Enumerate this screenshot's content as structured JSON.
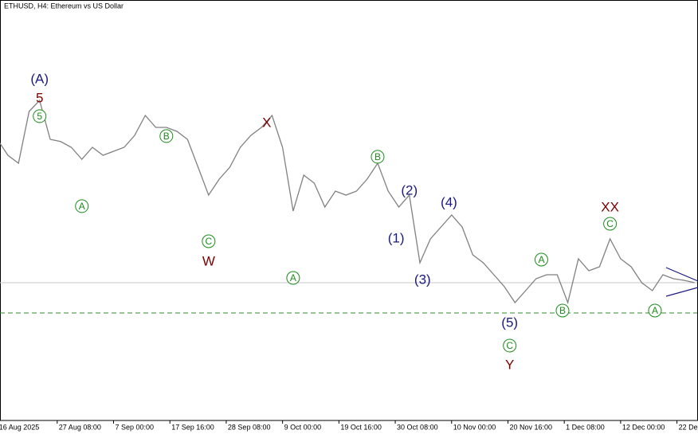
{
  "chart_data": {
    "type": "line",
    "title": "ETHUSD, H4:  Ethereum vs US Dollar",
    "x": [
      "2025-08-16 00:00",
      "2025-08-18 00:00",
      "2025-08-20 00:00",
      "2025-08-22 00:00",
      "2025-08-24 00:00",
      "2025-08-26 00:00",
      "2025-08-28 00:00",
      "2025-08-30 00:00",
      "2025-09-01 00:00",
      "2025-09-03 00:00",
      "2025-09-05 00:00",
      "2025-09-07 00:00",
      "2025-09-09 00:00",
      "2025-09-11 00:00",
      "2025-09-13 00:00",
      "2025-09-15 00:00",
      "2025-09-17 00:00",
      "2025-09-19 00:00",
      "2025-09-21 00:00",
      "2025-09-23 00:00",
      "2025-09-25 00:00",
      "2025-09-27 00:00",
      "2025-09-29 00:00",
      "2025-10-01 00:00",
      "2025-10-03 00:00",
      "2025-10-05 00:00",
      "2025-10-07 00:00",
      "2025-10-09 00:00",
      "2025-10-11 00:00",
      "2025-10-13 00:00",
      "2025-10-15 00:00",
      "2025-10-17 00:00",
      "2025-10-19 00:00",
      "2025-10-21 00:00",
      "2025-10-23 00:00",
      "2025-10-25 00:00",
      "2025-10-27 00:00",
      "2025-10-29 00:00",
      "2025-10-31 00:00",
      "2025-11-02 00:00",
      "2025-11-04 00:00",
      "2025-11-06 00:00",
      "2025-11-08 00:00",
      "2025-11-10 00:00",
      "2025-11-12 00:00",
      "2025-11-14 00:00",
      "2025-11-16 00:00",
      "2025-11-18 00:00",
      "2025-11-20 00:00",
      "2025-11-22 00:00",
      "2025-11-24 00:00",
      "2025-11-26 00:00",
      "2025-11-28 00:00",
      "2025-11-30 00:00",
      "2025-12-02 00:00",
      "2025-12-04 00:00",
      "2025-12-06 00:00",
      "2025-12-08 00:00",
      "2025-12-10 00:00",
      "2025-12-12 00:00",
      "2025-12-14 00:00",
      "2025-12-16 00:00",
      "2025-12-18 00:00",
      "2025-12-20 00:00",
      "2025-12-22 00:00",
      "2025-12-24 00:00",
      "2025-12-26 00:00"
    ],
    "series": [
      {
        "color": "#808080",
        "values": [
          4510,
          4330,
          4240,
          4825,
          4950,
          4510,
          4485,
          4420,
          4285,
          4420,
          4330,
          4375,
          4420,
          4555,
          4780,
          4645,
          4645,
          4600,
          4510,
          4195,
          3880,
          4060,
          4195,
          4420,
          4555,
          4645,
          4780,
          4420,
          3700,
          4105,
          4015,
          3745,
          3925,
          3880,
          3925,
          4060,
          4240,
          3925,
          3745,
          3880,
          3115,
          3385,
          3520,
          3655,
          3520,
          3205,
          3115,
          2980,
          2845,
          2665,
          2800,
          2935,
          2980,
          2980,
          2665,
          3160,
          3025,
          3070,
          3385,
          3160,
          3070,
          2890,
          2800,
          2980,
          2935,
          2917,
          2890
        ]
      }
    ],
    "xlim": [
      "2025-08-16 12:00",
      "2025-12-26 12:00"
    ],
    "ylim": [
      1333,
      6085
    ],
    "xticks": [
      {
        "value": "2025-08-16 00:00",
        "label": "16 Aug 2025"
      },
      {
        "value": "2025-08-27 08:00",
        "label": "27 Aug 08:00"
      },
      {
        "value": "2025-09-07 00:00",
        "label": "7 Sep 00:00"
      },
      {
        "value": "2025-09-17 16:00",
        "label": "17 Sep 16:00"
      },
      {
        "value": "2025-09-28 08:00",
        "label": "28 Sep 08:00"
      },
      {
        "value": "2025-10-09 00:00",
        "label": "9 Oct 00:00"
      },
      {
        "value": "2025-10-19 16:00",
        "label": "19 Oct 16:00"
      },
      {
        "value": "2025-10-30 08:00",
        "label": "30 Oct 08:00"
      },
      {
        "value": "2025-11-10 00:00",
        "label": "10 Nov 00:00"
      },
      {
        "value": "2025-11-20 16:00",
        "label": "20 Nov 16:00"
      },
      {
        "value": "2025-12-01 08:00",
        "label": "1 Dec 08:00"
      },
      {
        "value": "2025-12-12 00:00",
        "label": "12 Dec 00:00"
      },
      {
        "value": "2025-12-22 16:00",
        "label": "22 Dec"
      }
    ],
    "levels": [
      {
        "value": 2890,
        "color": "#c8c8c8",
        "style": "solid"
      },
      {
        "value": 2548,
        "color": "#2e8b2e",
        "style": "dashed"
      }
    ],
    "annotations": [
      {
        "text": "(A)",
        "x": "2025-08-24 00:00",
        "y": 5185,
        "color": "#1a1a80",
        "style": "plain"
      },
      {
        "text": "5",
        "x": "2025-08-24 00:00",
        "y": 4970,
        "color": "#7a0000",
        "style": "plain"
      },
      {
        "text": "5",
        "x": "2025-08-24 00:00",
        "y": 4772,
        "color": "#1a8c1a",
        "style": "circle"
      },
      {
        "text": "A",
        "x": "2025-09-01 00:00",
        "y": 3755,
        "color": "#1a8c1a",
        "style": "circle"
      },
      {
        "text": "B",
        "x": "2025-09-17 00:00",
        "y": 4547,
        "color": "#1a8c1a",
        "style": "circle"
      },
      {
        "text": "C",
        "x": "2025-09-25 00:00",
        "y": 3358,
        "color": "#1a8c1a",
        "style": "circle"
      },
      {
        "text": "W",
        "x": "2025-09-25 00:00",
        "y": 3124,
        "color": "#7a0000",
        "style": "plain"
      },
      {
        "text": "X",
        "x": "2025-10-06 00:00",
        "y": 4691,
        "color": "#7a0000",
        "style": "plain"
      },
      {
        "text": "A",
        "x": "2025-10-11 00:00",
        "y": 2944,
        "color": "#1a8c1a",
        "style": "circle"
      },
      {
        "text": "B",
        "x": "2025-10-27 00:00",
        "y": 4313,
        "color": "#1a8c1a",
        "style": "circle"
      },
      {
        "text": "(2)",
        "x": "2025-11-02 00:00",
        "y": 3926,
        "color": "#1a1a80",
        "style": "plain"
      },
      {
        "text": "(1)",
        "x": "2025-10-30 12:00",
        "y": 3386,
        "color": "#1a1a80",
        "style": "plain"
      },
      {
        "text": "(3)",
        "x": "2025-11-04 12:00",
        "y": 2917,
        "color": "#1a1a80",
        "style": "plain"
      },
      {
        "text": "(4)",
        "x": "2025-11-09 12:00",
        "y": 3791,
        "color": "#1a1a80",
        "style": "plain"
      },
      {
        "text": "(5)",
        "x": "2025-11-21 00:00",
        "y": 2431,
        "color": "#1a1a80",
        "style": "plain"
      },
      {
        "text": "C",
        "x": "2025-11-21 00:00",
        "y": 2179,
        "color": "#1a8c1a",
        "style": "circle"
      },
      {
        "text": "Y",
        "x": "2025-11-21 00:00",
        "y": 1954,
        "color": "#7a0000",
        "style": "plain"
      },
      {
        "text": "A",
        "x": "2025-11-27 00:00",
        "y": 3151,
        "color": "#1a8c1a",
        "style": "circle"
      },
      {
        "text": "B",
        "x": "2025-12-01 00:00",
        "y": 2575,
        "color": "#1a8c1a",
        "style": "circle"
      },
      {
        "text": "XX",
        "x": "2025-12-10 00:00",
        "y": 3736,
        "color": "#7a0000",
        "style": "plain"
      },
      {
        "text": "C",
        "x": "2025-12-10 00:00",
        "y": 3556,
        "color": "#1a8c1a",
        "style": "circle"
      },
      {
        "text": "A",
        "x": "2025-12-18 12:00",
        "y": 2575,
        "color": "#1a8c1a",
        "style": "circle"
      }
    ]
  }
}
